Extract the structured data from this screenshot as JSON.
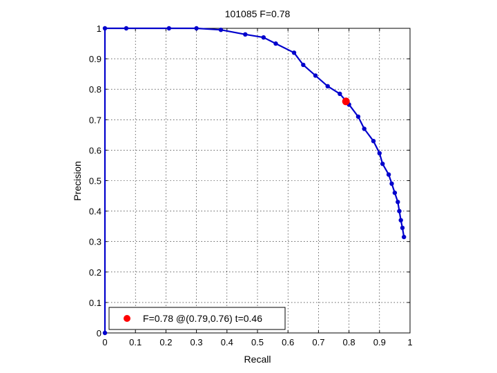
{
  "chart_data": {
    "type": "line",
    "title": "101085 F=0.78",
    "xlabel": "Recall",
    "ylabel": "Precision",
    "xlim": [
      0,
      1
    ],
    "ylim": [
      0,
      1
    ],
    "grid": true,
    "legend_position": "bottom-left",
    "x_ticks": [
      "0",
      "0.1",
      "0.2",
      "0.3",
      "0.4",
      "0.5",
      "0.6",
      "0.7",
      "0.8",
      "0.9",
      "1"
    ],
    "y_ticks": [
      "0",
      "0.1",
      "0.2",
      "0.3",
      "0.4",
      "0.5",
      "0.6",
      "0.7",
      "0.8",
      "0.9",
      "1"
    ],
    "series": [
      {
        "color": "#0000cc",
        "marker": "dot",
        "points": [
          [
            0.0,
            0.0
          ],
          [
            0.0,
            1.0
          ],
          [
            0.07,
            1.0
          ],
          [
            0.21,
            1.0
          ],
          [
            0.3,
            1.0
          ],
          [
            0.38,
            0.995
          ],
          [
            0.46,
            0.98
          ],
          [
            0.52,
            0.97
          ],
          [
            0.56,
            0.95
          ],
          [
            0.62,
            0.92
          ],
          [
            0.65,
            0.88
          ],
          [
            0.69,
            0.845
          ],
          [
            0.73,
            0.81
          ],
          [
            0.77,
            0.785
          ],
          [
            0.8,
            0.75
          ],
          [
            0.83,
            0.71
          ],
          [
            0.85,
            0.67
          ],
          [
            0.88,
            0.63
          ],
          [
            0.9,
            0.59
          ],
          [
            0.91,
            0.555
          ],
          [
            0.93,
            0.52
          ],
          [
            0.94,
            0.49
          ],
          [
            0.95,
            0.46
          ],
          [
            0.96,
            0.43
          ],
          [
            0.965,
            0.4
          ],
          [
            0.97,
            0.37
          ],
          [
            0.975,
            0.345
          ],
          [
            0.98,
            0.315
          ]
        ]
      }
    ],
    "best_point": {
      "recall": 0.79,
      "precision": 0.76,
      "color": "#ff0000"
    },
    "legend": {
      "label": "F=0.78 @(0.79,0.76) t=0.46",
      "marker_color": "#ff0000"
    }
  }
}
